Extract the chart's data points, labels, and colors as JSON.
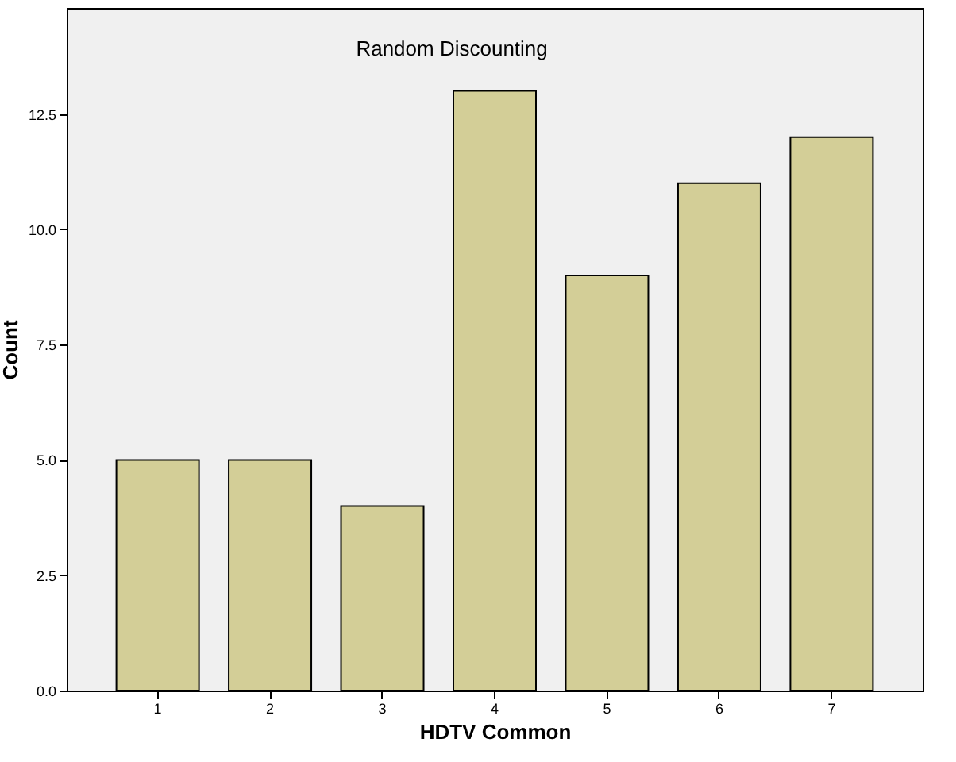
{
  "chart_data": {
    "type": "bar",
    "title": "Random Discounting",
    "xlabel": "HDTV Common",
    "ylabel": "Count",
    "categories": [
      "1",
      "2",
      "3",
      "4",
      "5",
      "6",
      "7"
    ],
    "values": [
      5,
      5,
      4,
      13,
      9,
      11,
      12
    ],
    "color": "#d3ce97",
    "ylim": [
      0,
      14.8
    ],
    "yticks": [
      {
        "value": 0,
        "label": "0.0"
      },
      {
        "value": 2.5,
        "label": "2.5"
      },
      {
        "value": 5,
        "label": "5.0"
      },
      {
        "value": 7.5,
        "label": "7.5"
      },
      {
        "value": 10,
        "label": "10.0"
      },
      {
        "value": 12.5,
        "label": "12.5"
      }
    ],
    "grid": false
  }
}
